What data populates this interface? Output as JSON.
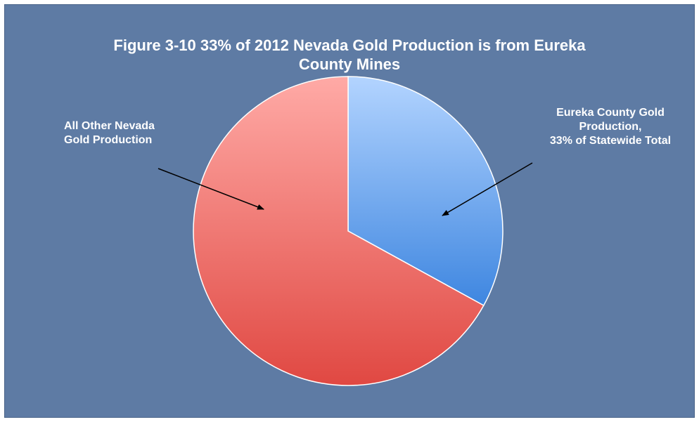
{
  "colors": {
    "background": "#5e7ba4",
    "eureka_slice": "#6fa2e8",
    "other_slice": "#f06e68"
  },
  "chart_data": {
    "type": "pie",
    "title_lines": [
      "Figure 3-10 33% of 2012 Nevada Gold Production is from Eureka",
      "County Mines"
    ],
    "slices": [
      {
        "label_lines": [
          "Eureka County Gold",
          "Production,",
          "33% of Statewide Total"
        ],
        "value": 33,
        "color": "#6fa2e8"
      },
      {
        "label_lines": [
          "All Other Nevada",
          "Gold Production"
        ],
        "value": 67,
        "color": "#f06e68"
      }
    ],
    "start": "12 o'clock",
    "direction": "clockwise",
    "legend": "none"
  }
}
